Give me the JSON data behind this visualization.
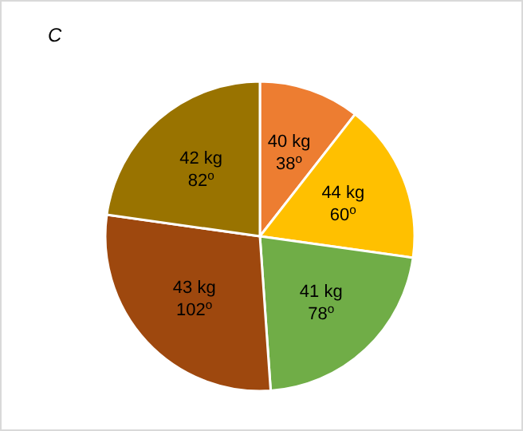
{
  "chart_data": {
    "type": "pie",
    "title": "C",
    "categories": [
      "40 kg",
      "44 kg",
      "41 kg",
      "43 kg",
      "42 kg"
    ],
    "values": [
      38,
      60,
      78,
      102,
      82
    ],
    "value_labels": [
      "38$^{o}$",
      "60$^{o}$",
      "78$^{o}$",
      "102$^{o}$",
      "82$^{o}$"
    ],
    "colors": [
      "#ed7d31",
      "#ffc000",
      "#70ad47",
      "#9e480e",
      "#997300"
    ],
    "legend": false
  }
}
